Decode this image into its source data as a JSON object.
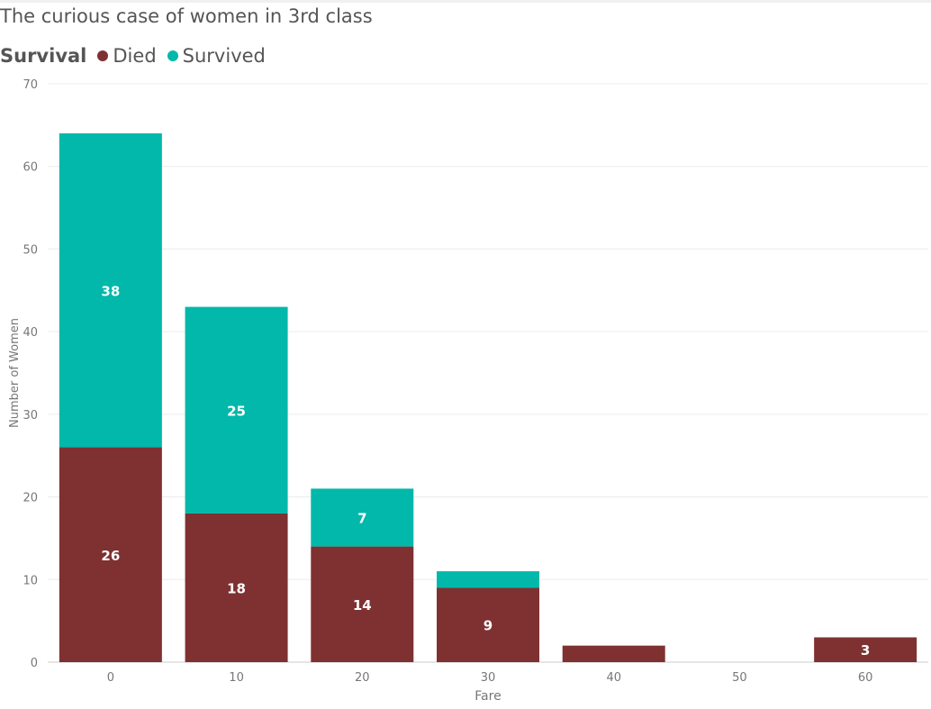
{
  "chart_data": {
    "type": "bar",
    "stacked": true,
    "title": "The curious case of women in 3rd class",
    "legend_title": "Survival",
    "legend_position": "top-left",
    "xlabel": "Fare",
    "ylabel": "Number of Women",
    "ylim": [
      0,
      70
    ],
    "yticks": [
      0,
      10,
      20,
      30,
      40,
      50,
      60,
      70
    ],
    "grid": true,
    "categories": [
      "0",
      "10",
      "20",
      "30",
      "40",
      "50",
      "60"
    ],
    "series": [
      {
        "name": "Died",
        "color": "#7f3131",
        "values": [
          26,
          18,
          14,
          9,
          2,
          0,
          3
        ],
        "data_labels": [
          "26",
          "18",
          "14",
          "9",
          "",
          "",
          "3"
        ]
      },
      {
        "name": "Survived",
        "color": "#01b8aa",
        "values": [
          38,
          25,
          7,
          2,
          0,
          0,
          0
        ],
        "data_labels": [
          "38",
          "25",
          "7",
          "",
          "",
          "",
          ""
        ]
      }
    ]
  }
}
